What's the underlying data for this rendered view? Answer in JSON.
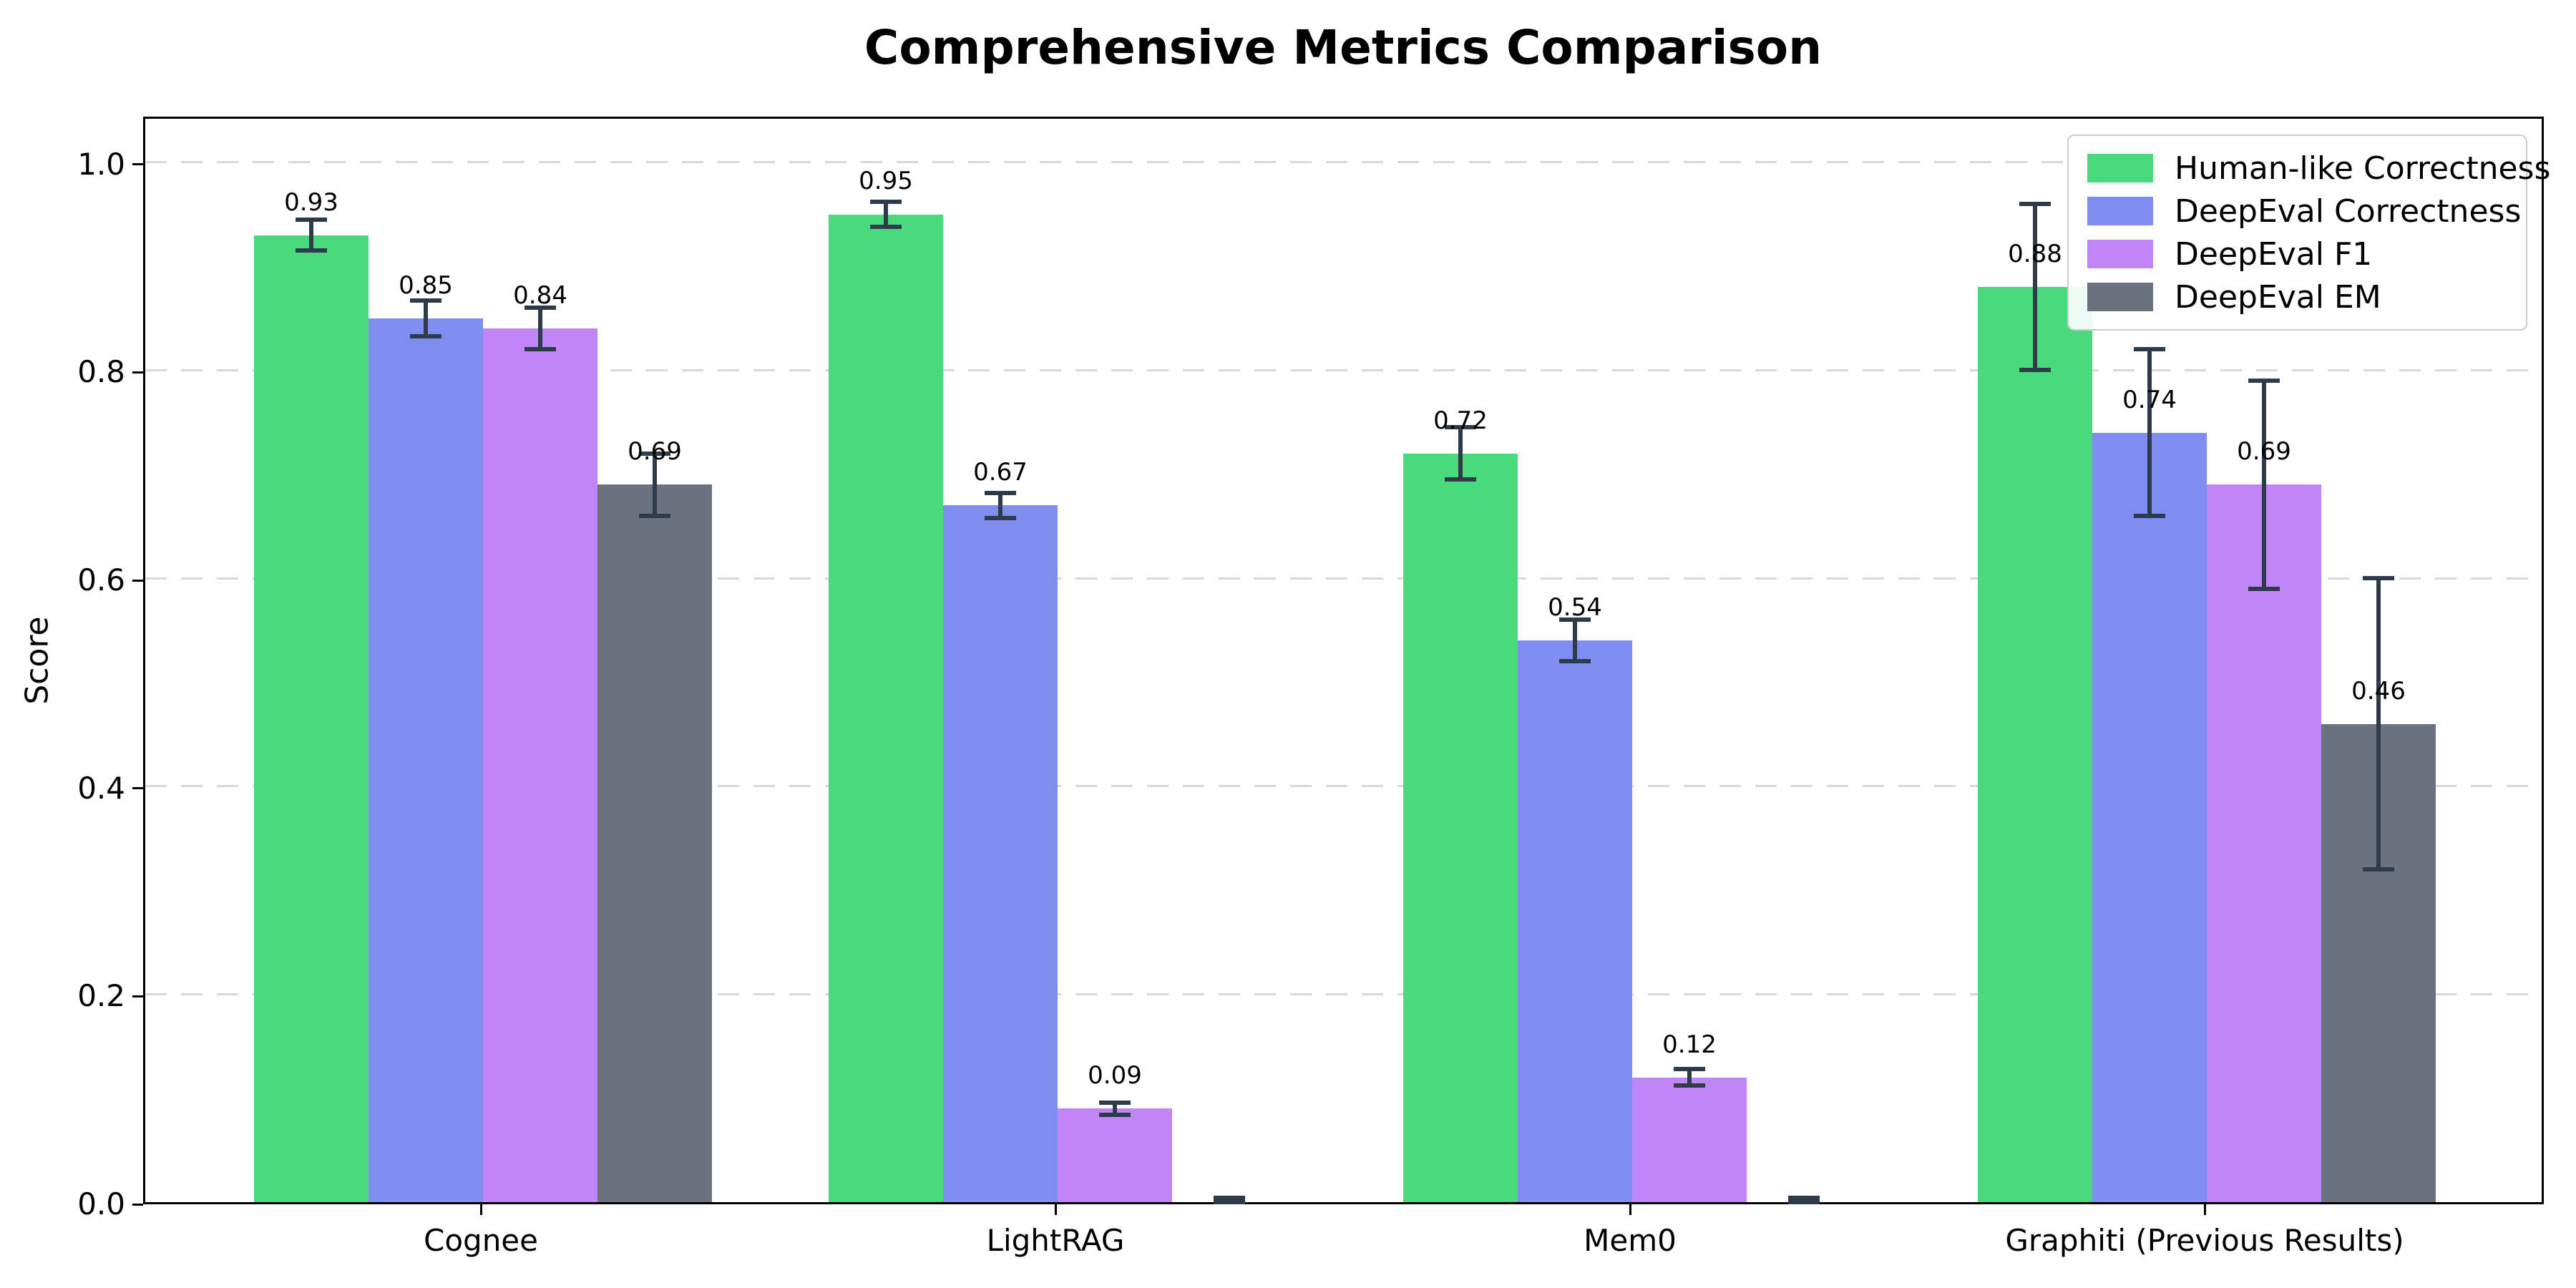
{
  "figure": {
    "title": "Comprehensive Metrics Comparison",
    "ylabel": "Score"
  },
  "chart_data": {
    "type": "bar",
    "title": "Comprehensive Metrics Comparison",
    "xlabel": "",
    "ylabel": "Score",
    "categories": [
      "Cognee",
      "LightRAG",
      "Mem0",
      "Graphiti (Previous Results)"
    ],
    "series": [
      {
        "name": "Human-like Correctness",
        "color": "#4bd97e",
        "values": [
          0.93,
          0.95,
          0.72,
          0.88
        ],
        "errors": [
          0.015,
          0.012,
          0.025,
          0.08
        ],
        "labels": [
          "0.93",
          "0.95",
          "0.72",
          "0.88"
        ]
      },
      {
        "name": "DeepEval Correctness",
        "color": "#7f8cf0",
        "values": [
          0.85,
          0.67,
          0.54,
          0.74
        ],
        "errors": [
          0.017,
          0.012,
          0.02,
          0.08
        ],
        "labels": [
          "0.85",
          "0.67",
          "0.54",
          "0.74"
        ]
      },
      {
        "name": "DeepEval F1",
        "color": "#c085f7",
        "values": [
          0.84,
          0.09,
          0.12,
          0.69
        ],
        "errors": [
          0.02,
          0.006,
          0.008,
          0.1
        ],
        "labels": [
          "0.84",
          "0.09",
          "0.12",
          "0.69"
        ]
      },
      {
        "name": "DeepEval EM",
        "color": "#6a7280",
        "values": [
          0.69,
          0.0,
          0.0,
          0.46
        ],
        "errors": [
          0.03,
          0.004,
          0.004,
          0.14
        ],
        "labels": [
          "0.69",
          "",
          "",
          "0.46"
        ]
      }
    ],
    "ylim": [
      0,
      1.046
    ],
    "yticks": [
      "0.0",
      "0.2",
      "0.4",
      "0.6",
      "0.8",
      "1.0"
    ],
    "grid": "horizontal-dashed",
    "legend_position": "upper right",
    "error_bar_color": "#2d3b4a",
    "gridline_color": "#d9d9d9"
  }
}
